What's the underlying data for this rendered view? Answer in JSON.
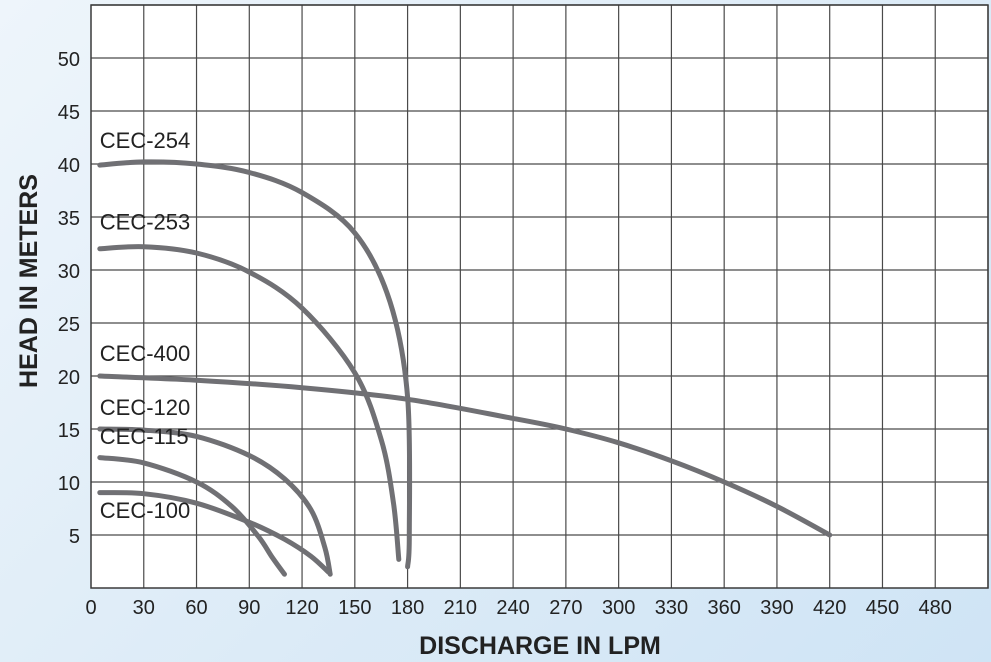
{
  "chart_data": {
    "type": "line",
    "title": "",
    "xlabel": "DISCHARGE IN LPM",
    "ylabel": "HEAD IN METERS",
    "xlim": [
      0,
      510
    ],
    "ylim": [
      0,
      55
    ],
    "x_ticks": [
      0,
      30,
      60,
      90,
      120,
      150,
      180,
      210,
      240,
      270,
      300,
      330,
      360,
      390,
      420,
      450,
      480
    ],
    "y_ticks": [
      5,
      10,
      15,
      20,
      25,
      30,
      35,
      40,
      45,
      50
    ],
    "grid": true,
    "line_color": "#707074",
    "series": [
      {
        "name": "CEC-254",
        "points": [
          [
            5,
            39.9
          ],
          [
            30,
            40.2
          ],
          [
            60,
            40
          ],
          [
            90,
            39.2
          ],
          [
            120,
            37.3
          ],
          [
            150,
            33.5
          ],
          [
            170,
            27
          ],
          [
            180,
            18
          ],
          [
            181,
            5
          ],
          [
            180,
            2
          ]
        ]
      },
      {
        "name": "CEC-253",
        "points": [
          [
            5,
            32
          ],
          [
            30,
            32.2
          ],
          [
            60,
            31.6
          ],
          [
            90,
            29.8
          ],
          [
            120,
            26.4
          ],
          [
            150,
            20.3
          ],
          [
            165,
            14
          ],
          [
            172,
            8
          ],
          [
            175,
            2.7
          ]
        ]
      },
      {
        "name": "CEC-400",
        "points": [
          [
            5,
            20
          ],
          [
            60,
            19.6
          ],
          [
            120,
            18.9
          ],
          [
            180,
            17.8
          ],
          [
            240,
            16
          ],
          [
            270,
            15
          ],
          [
            300,
            13.7
          ],
          [
            330,
            12
          ],
          [
            360,
            10
          ],
          [
            390,
            7.7
          ],
          [
            420,
            5
          ]
        ]
      },
      {
        "name": "CEC-120",
        "points": [
          [
            5,
            15
          ],
          [
            30,
            14.9
          ],
          [
            60,
            14.3
          ],
          [
            90,
            12.5
          ],
          [
            110,
            10.3
          ],
          [
            125,
            7.4
          ],
          [
            133,
            3.8
          ],
          [
            136,
            1.3
          ]
        ]
      },
      {
        "name": "CEC-115",
        "points": [
          [
            5,
            12.3
          ],
          [
            30,
            11.8
          ],
          [
            60,
            10
          ],
          [
            80,
            7.7
          ],
          [
            95,
            4.9
          ],
          [
            103,
            2.9
          ],
          [
            110,
            1.3
          ]
        ]
      },
      {
        "name": "CEC-100",
        "points": [
          [
            5,
            9
          ],
          [
            30,
            8.9
          ],
          [
            60,
            8
          ],
          [
            90,
            6.2
          ],
          [
            110,
            4.6
          ],
          [
            125,
            3
          ],
          [
            135,
            1.5
          ]
        ]
      }
    ],
    "labels": [
      {
        "text": "CEC-254",
        "x": 5,
        "y": 41.5
      },
      {
        "text": "CEC-253",
        "x": 5,
        "y": 33.8
      },
      {
        "text": "CEC-400",
        "x": 5,
        "y": 21.4
      },
      {
        "text": "CEC-120",
        "x": 5,
        "y": 16.3
      },
      {
        "text": "CEC-115",
        "x": 5,
        "y": 13.6
      },
      {
        "text": "CEC-100",
        "x": 5,
        "y": 6.6
      }
    ]
  }
}
